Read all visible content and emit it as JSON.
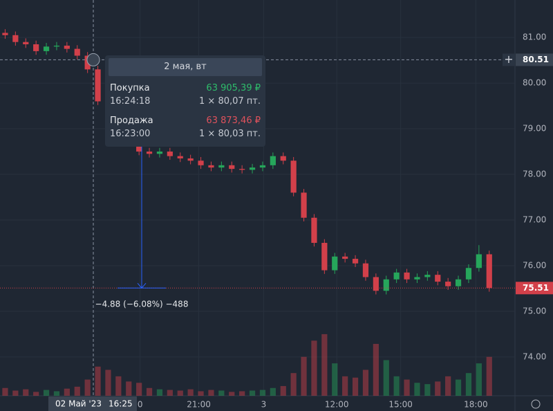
{
  "chart_data": {
    "type": "candlestick",
    "x": [
      0,
      1,
      2,
      3,
      4,
      5,
      6,
      7,
      8,
      9,
      10,
      11,
      12,
      13,
      14,
      15,
      16,
      17,
      18,
      19,
      20,
      21,
      22,
      23,
      24,
      25,
      26,
      27,
      28,
      29,
      30,
      31,
      32,
      33,
      34,
      35,
      36,
      37,
      38,
      39,
      40,
      41,
      42,
      43,
      44,
      45,
      46,
      47
    ],
    "open": [
      81.1,
      81.05,
      80.9,
      80.85,
      80.7,
      80.8,
      80.82,
      80.75,
      80.6,
      80.3,
      79.6,
      79.2,
      79.0,
      78.8,
      78.5,
      78.45,
      78.5,
      78.4,
      78.35,
      78.3,
      78.2,
      78.15,
      78.2,
      78.12,
      78.1,
      78.15,
      78.2,
      78.4,
      78.3,
      77.6,
      77.05,
      76.5,
      75.9,
      76.2,
      76.15,
      76.05,
      75.75,
      75.45,
      75.7,
      75.85,
      75.7,
      75.75,
      75.8,
      75.65,
      75.55,
      75.7,
      75.95,
      76.25
    ],
    "high": [
      81.18,
      81.13,
      80.98,
      80.93,
      80.88,
      80.9,
      80.9,
      80.83,
      80.68,
      80.38,
      79.68,
      79.28,
      79.08,
      78.88,
      78.58,
      78.58,
      78.58,
      78.48,
      78.43,
      78.38,
      78.28,
      78.28,
      78.28,
      78.2,
      78.23,
      78.28,
      78.48,
      78.48,
      78.38,
      77.68,
      77.13,
      76.58,
      76.28,
      76.28,
      76.23,
      76.13,
      75.83,
      75.78,
      75.93,
      75.93,
      75.83,
      75.88,
      75.88,
      75.73,
      75.78,
      76.03,
      76.45,
      76.33
    ],
    "low": [
      80.97,
      80.82,
      80.77,
      80.62,
      80.62,
      80.72,
      80.67,
      80.52,
      80.22,
      79.52,
      79.12,
      78.92,
      78.72,
      78.42,
      78.37,
      78.37,
      78.32,
      78.27,
      78.22,
      78.12,
      78.07,
      78.07,
      78.04,
      78.02,
      78.02,
      78.07,
      78.12,
      78.22,
      77.52,
      76.97,
      76.42,
      75.82,
      75.82,
      76.07,
      75.97,
      75.67,
      75.37,
      75.37,
      75.62,
      75.62,
      75.62,
      75.67,
      75.57,
      75.47,
      75.47,
      75.62,
      75.87,
      75.43
    ],
    "close": [
      81.05,
      80.9,
      80.85,
      80.7,
      80.8,
      80.82,
      80.75,
      80.6,
      80.3,
      79.6,
      79.2,
      79.0,
      78.8,
      78.5,
      78.45,
      78.5,
      78.4,
      78.35,
      78.3,
      78.2,
      78.15,
      78.2,
      78.12,
      78.1,
      78.15,
      78.2,
      78.4,
      78.3,
      77.6,
      77.05,
      76.5,
      75.9,
      76.2,
      76.15,
      76.05,
      75.75,
      75.45,
      75.7,
      75.85,
      75.7,
      75.75,
      75.8,
      75.65,
      75.55,
      75.7,
      75.95,
      76.25,
      75.51
    ],
    "volumes": [
      12,
      8,
      10,
      6,
      9,
      7,
      11,
      14,
      25,
      45,
      40,
      30,
      22,
      20,
      12,
      10,
      9,
      8,
      10,
      7,
      9,
      8,
      6,
      7,
      8,
      9,
      12,
      15,
      35,
      60,
      85,
      95,
      50,
      30,
      28,
      40,
      80,
      55,
      30,
      25,
      20,
      18,
      22,
      30,
      25,
      35,
      50,
      60
    ],
    "xlim": [
      -0.5,
      49.5
    ],
    "ylim": [
      73.15,
      81.82
    ],
    "y2lim": [
      0,
      160
    ],
    "yticks": [
      {
        "value": 74,
        "label": "74.00"
      },
      {
        "value": 75,
        "label": "75.00"
      },
      {
        "value": 76,
        "label": "76.00"
      },
      {
        "value": 77,
        "label": "77.00"
      },
      {
        "value": 78,
        "label": "78.00"
      },
      {
        "value": 79,
        "label": "79.00"
      },
      {
        "value": 80,
        "label": "80.00"
      },
      {
        "value": 81,
        "label": "81.00"
      }
    ],
    "xticks": [
      {
        "value": 13.1,
        "label": "0"
      },
      {
        "value": 18.8,
        "label": "21:00"
      },
      {
        "value": 25.1,
        "label": "3"
      },
      {
        "value": 32.2,
        "label": "12:00"
      },
      {
        "value": 38.4,
        "label": "15:00"
      },
      {
        "value": 45.7,
        "label": "18:00"
      }
    ],
    "up_color": "#26a65b",
    "down_color": "#d2404a",
    "crosshair_price": {
      "value": 80.51,
      "label": "80.51"
    },
    "last_price": {
      "value": 75.51,
      "label": "75.51"
    },
    "crosshair_time": "02 Май '23",
    "crosshair_clock": "16:25",
    "measure": "−4.88 (−6.08%) −488"
  },
  "tooltip": {
    "date": "2 мая, вт",
    "buy": {
      "label": "Покупка",
      "amount": "63 905,39 ₽",
      "time": "16:24:18",
      "qty": "1 × 80,07 пт."
    },
    "sell": {
      "label": "Продажа",
      "amount": "63 873,46 ₽",
      "time": "16:23:00",
      "qty": "1 × 80,03 пт."
    }
  }
}
